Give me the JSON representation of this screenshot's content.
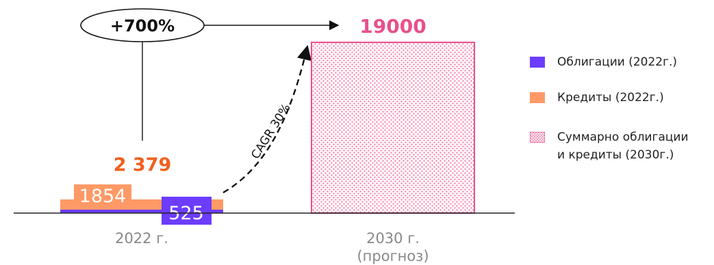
{
  "chart_data": {
    "type": "bar",
    "categories": [
      "2022 г.",
      "2030 г.\n(прогноз)"
    ],
    "category_lines": [
      [
        "2022 г."
      ],
      [
        "2030 г.",
        "(прогноз)"
      ]
    ],
    "series": [
      {
        "name": "Облигации (2022г.)",
        "values": [
          525,
          null
        ],
        "color": "#6c3cff"
      },
      {
        "name": "Кредиты (2022г.)",
        "values": [
          1854,
          null
        ],
        "color": "#ff9966"
      },
      {
        "name": "Суммарно облигации и кредиты (2030г.)",
        "values": [
          null,
          19000
        ],
        "color": "#e8508c"
      }
    ],
    "totals": [
      "2 379",
      "19000"
    ],
    "data_labels": {
      "credits_2022": "1854",
      "bonds_2022": "525"
    },
    "growth_label": "+700%",
    "cagr_label": "CAGR 30%",
    "legend_placement": "right",
    "grid": false,
    "title": "",
    "xlabel": "",
    "ylabel": ""
  },
  "legend": [
    {
      "label": "Облигации (2022г.)",
      "color": "#6c3cff",
      "style": "solid"
    },
    {
      "label": "Кредиты (2022г.)",
      "color": "#ff9966",
      "style": "solid"
    },
    {
      "label": "Суммарно облигации\nи кредиты (2030г.)",
      "color": "#e8508c",
      "style": "dotted"
    }
  ],
  "colors": {
    "total_2022": "#f06020",
    "total_2030": "#e8508c",
    "axis": "#222222",
    "category": "#888888"
  }
}
